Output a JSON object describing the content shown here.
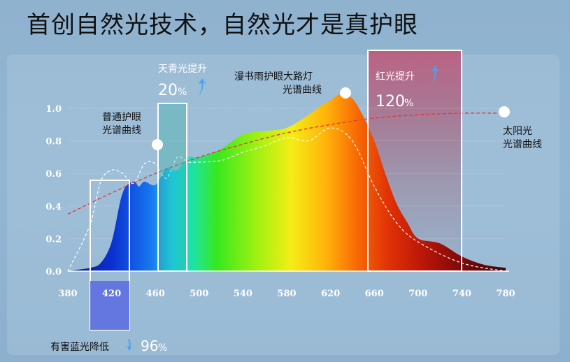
{
  "headline": "首创自然光技术，自然光才是真护眼",
  "chart_data": {
    "type": "line",
    "xlim": [
      380,
      780
    ],
    "ylim": [
      0.0,
      1.0
    ],
    "x_ticks": [
      "380",
      "420",
      "460",
      "500",
      "540",
      "580",
      "620",
      "660",
      "700",
      "740",
      "780"
    ],
    "y_ticks": [
      "0.0",
      "0.2",
      "0.4",
      "0.6",
      "0.8",
      "1.0"
    ],
    "series": [
      {
        "name": "漫书雨护眼大路灯光谱曲线",
        "style": "filled spectrum gradient",
        "x": [
          380,
          390,
          400,
          410,
          420,
          430,
          440,
          445,
          450,
          460,
          470,
          480,
          490,
          500,
          520,
          540,
          560,
          580,
          600,
          610,
          620,
          630,
          640,
          650,
          660,
          670,
          680,
          690,
          700,
          720,
          740,
          760,
          780
        ],
        "y": [
          0.0,
          0.01,
          0.02,
          0.05,
          0.18,
          0.48,
          0.55,
          0.52,
          0.55,
          0.53,
          0.63,
          0.62,
          0.7,
          0.7,
          0.75,
          0.84,
          0.86,
          0.88,
          0.96,
          1.01,
          1.05,
          1.09,
          1.06,
          0.95,
          0.8,
          0.6,
          0.42,
          0.3,
          0.2,
          0.17,
          0.09,
          0.04,
          0.02
        ]
      },
      {
        "name": "普通护眼光谱曲线",
        "style": "dashed white",
        "x": [
          380,
          400,
          410,
          420,
          430,
          440,
          450,
          460,
          470,
          480,
          490,
          500,
          520,
          540,
          560,
          580,
          600,
          620,
          640,
          660,
          680,
          700,
          740,
          780
        ],
        "y": [
          0.0,
          0.28,
          0.55,
          0.62,
          0.6,
          0.54,
          0.66,
          0.66,
          0.57,
          0.7,
          0.67,
          0.67,
          0.68,
          0.73,
          0.77,
          0.82,
          0.8,
          0.88,
          0.8,
          0.52,
          0.3,
          0.18,
          0.05,
          0.0
        ]
      },
      {
        "name": "太阳光光谱曲线",
        "style": "dashed red",
        "x": [
          380,
          420,
          460,
          500,
          540,
          580,
          620,
          660,
          700,
          740,
          780
        ],
        "y": [
          0.35,
          0.48,
          0.6,
          0.7,
          0.78,
          0.85,
          0.9,
          0.94,
          0.96,
          0.97,
          0.97
        ]
      }
    ],
    "annotations": {
      "normal": [
        "普通护眼",
        "光谱曲线"
      ],
      "lamp": [
        "漫书雨护眼大路灯",
        "光谱曲线"
      ],
      "sun": [
        "太阳光",
        "光谱曲线"
      ],
      "cyan_label": "天青光提升",
      "cyan_value": "20",
      "red_label": "红光提升",
      "red_value": "120",
      "blue_label": "有害蓝光降低",
      "blue_value": "96",
      "percent": "%"
    }
  }
}
